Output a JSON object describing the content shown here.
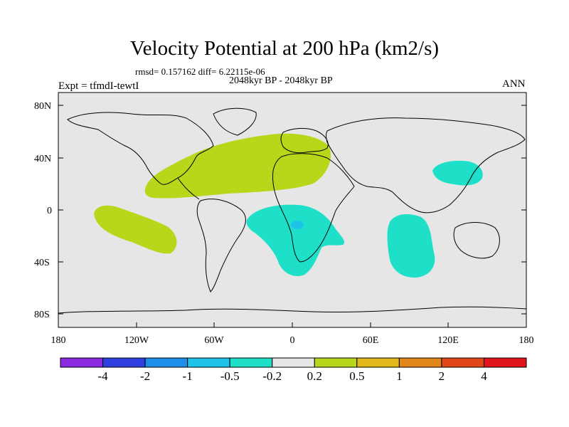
{
  "title": "Velocity Potential at 200 hPa (km2/s)",
  "stats": "rmsd= 0.157162  diff= 6.22115e-06",
  "period": "2048kyr BP - 2048kyr BP",
  "experiment": "Expt = tfmdI-tewtI",
  "season": "ANN",
  "lat_labels": [
    "80N",
    "40N",
    "0",
    "40S",
    "80S"
  ],
  "lon_labels": [
    "180",
    "120W",
    "60W",
    "0",
    "60E",
    "120E",
    "180"
  ],
  "colorbar": {
    "colors": [
      "#8a2be2",
      "#2f3fe0",
      "#1e8fe8",
      "#1ec3ea",
      "#1ee0c8",
      "#e6e6e6",
      "#b8d61a",
      "#e0b81a",
      "#e0861a",
      "#e0481a",
      "#e0141a"
    ],
    "labels": [
      "-4",
      "-2",
      "-1",
      "-0.5",
      "-0.2",
      "0.2",
      "0.5",
      "1",
      "2",
      "4"
    ]
  },
  "field_colors": {
    "background": "#e6e6e6",
    "positive": "#b8d61a",
    "negative": "#1ee0c8",
    "strong_negative": "#1ec3ea"
  }
}
